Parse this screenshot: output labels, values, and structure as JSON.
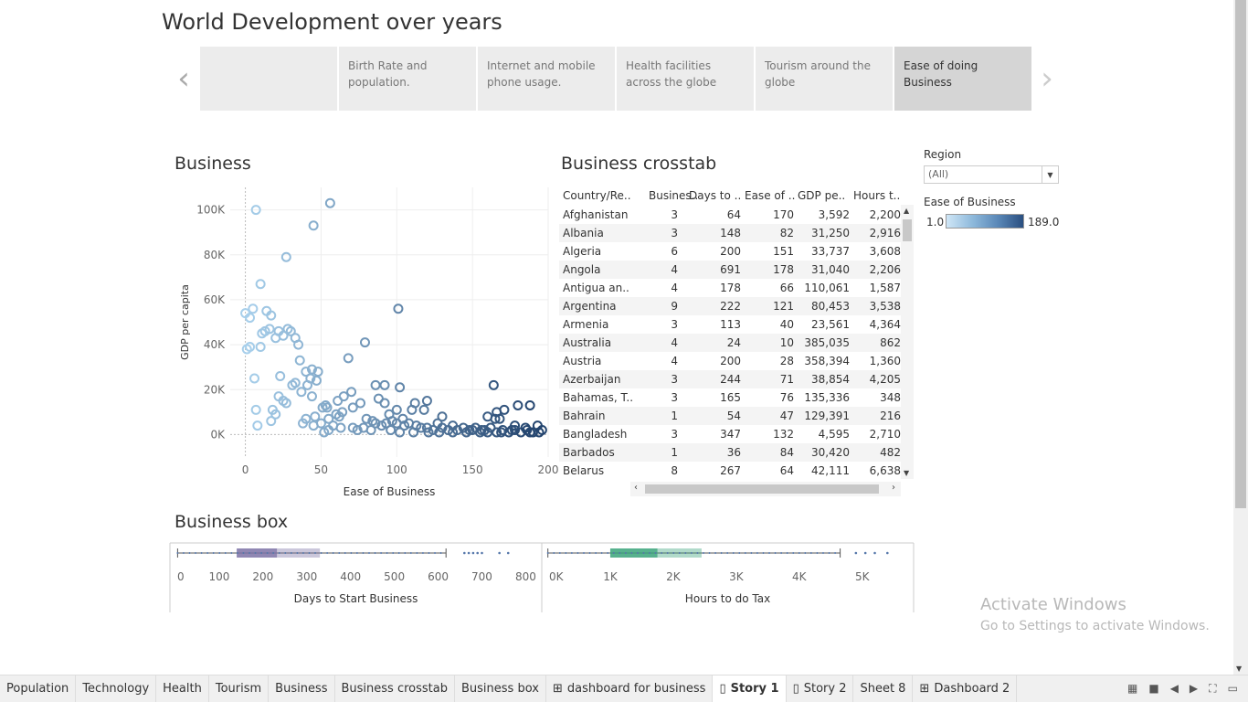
{
  "story": {
    "title": "World Development over years",
    "points": [
      {
        "label": ""
      },
      {
        "label": "Birth Rate and population."
      },
      {
        "label": "Internet and mobile phone usage."
      },
      {
        "label": "Health facilities across the globe"
      },
      {
        "label": "Tourism around the globe"
      },
      {
        "label": "Ease of doing Business"
      }
    ],
    "active_point": 5,
    "prev_arrow": "‹",
    "next_arrow": "›"
  },
  "scatter": {
    "title": "Business",
    "chart_data": {
      "type": "scatter",
      "xlabel": "Ease of Business",
      "ylabel": "GDP per capita",
      "xlim": [
        -10,
        200
      ],
      "ylim": [
        -10000,
        110000
      ],
      "x_ticks": [
        "0",
        "50",
        "100",
        "150",
        "200"
      ],
      "y_ticks": [
        "0K",
        "20K",
        "40K",
        "60K",
        "80K",
        "100K"
      ],
      "color_scale": [
        "#a8d0ec",
        "#24456f"
      ],
      "points": [
        [
          7,
          100000
        ],
        [
          56,
          103000
        ],
        [
          45,
          93000
        ],
        [
          27,
          79000
        ],
        [
          10,
          67000
        ],
        [
          101,
          56000
        ],
        [
          5,
          56000
        ],
        [
          0,
          54000
        ],
        [
          14,
          55000
        ],
        [
          17,
          53000
        ],
        [
          3,
          52000
        ],
        [
          13,
          46000
        ],
        [
          16,
          47000
        ],
        [
          22,
          46000
        ],
        [
          28,
          47000
        ],
        [
          30,
          46000
        ],
        [
          25,
          44000
        ],
        [
          33,
          43000
        ],
        [
          20,
          43000
        ],
        [
          11,
          45000
        ],
        [
          35,
          40000
        ],
        [
          79,
          41000
        ],
        [
          3,
          39000
        ],
        [
          1,
          38000
        ],
        [
          10,
          39000
        ],
        [
          68,
          34000
        ],
        [
          36,
          33000
        ],
        [
          44,
          29000
        ],
        [
          40,
          28000
        ],
        [
          48,
          28000
        ],
        [
          6,
          25000
        ],
        [
          23,
          26000
        ],
        [
          43,
          25000
        ],
        [
          47,
          24000
        ],
        [
          33,
          23000
        ],
        [
          31,
          22000
        ],
        [
          41,
          22000
        ],
        [
          86,
          22000
        ],
        [
          92,
          22000
        ],
        [
          102,
          21000
        ],
        [
          164,
          22000
        ],
        [
          37,
          19000
        ],
        [
          22,
          17000
        ],
        [
          44,
          17000
        ],
        [
          65,
          17000
        ],
        [
          70,
          19000
        ],
        [
          61,
          15000
        ],
        [
          76,
          14000
        ],
        [
          88,
          16000
        ],
        [
          92,
          14000
        ],
        [
          25,
          15000
        ],
        [
          27,
          14000
        ],
        [
          112,
          14000
        ],
        [
          120,
          15000
        ],
        [
          53,
          13000
        ],
        [
          54,
          12000
        ],
        [
          51,
          12000
        ],
        [
          71,
          12000
        ],
        [
          100,
          11000
        ],
        [
          110,
          11000
        ],
        [
          118,
          11000
        ],
        [
          166,
          10000
        ],
        [
          171,
          11000
        ],
        [
          180,
          13000
        ],
        [
          188,
          13000
        ],
        [
          7,
          11000
        ],
        [
          18,
          11000
        ],
        [
          20,
          9000
        ],
        [
          60,
          9000
        ],
        [
          64,
          10000
        ],
        [
          95,
          9000
        ],
        [
          130,
          8000
        ],
        [
          160,
          8000
        ],
        [
          165,
          7000
        ],
        [
          168,
          7000
        ],
        [
          17,
          6000
        ],
        [
          40,
          7000
        ],
        [
          46,
          8000
        ],
        [
          55,
          7000
        ],
        [
          62,
          8000
        ],
        [
          80,
          7000
        ],
        [
          104,
          7000
        ],
        [
          45,
          4000
        ],
        [
          50,
          5000
        ],
        [
          38,
          5000
        ],
        [
          8,
          4000
        ],
        [
          55,
          2000
        ],
        [
          58,
          4000
        ],
        [
          63,
          3000
        ],
        [
          71,
          3000
        ],
        [
          74,
          2000
        ],
        [
          84,
          6000
        ],
        [
          86,
          5000
        ],
        [
          90,
          4000
        ],
        [
          93,
          5000
        ],
        [
          97,
          6000
        ],
        [
          100,
          5000
        ],
        [
          105,
          4000
        ],
        [
          108,
          5000
        ],
        [
          113,
          4000
        ],
        [
          116,
          3000
        ],
        [
          120,
          3000
        ],
        [
          124,
          2000
        ],
        [
          127,
          5000
        ],
        [
          130,
          3000
        ],
        [
          134,
          2000
        ],
        [
          137,
          4000
        ],
        [
          140,
          2000
        ],
        [
          144,
          3000
        ],
        [
          148,
          2000
        ],
        [
          152,
          3000
        ],
        [
          155,
          1000
        ],
        [
          158,
          2000
        ],
        [
          162,
          3000
        ],
        [
          166,
          1000
        ],
        [
          170,
          2000
        ],
        [
          174,
          1000
        ],
        [
          178,
          2000
        ],
        [
          182,
          1000
        ],
        [
          186,
          2000
        ],
        [
          190,
          1000
        ],
        [
          194,
          1000
        ],
        [
          196,
          2000
        ],
        [
          185,
          3000
        ],
        [
          178,
          4000
        ],
        [
          52,
          1000
        ],
        [
          83,
          2000
        ],
        [
          78,
          3000
        ],
        [
          96,
          2000
        ],
        [
          102,
          1000
        ],
        [
          111,
          1000
        ],
        [
          121,
          1000
        ],
        [
          128,
          1000
        ],
        [
          137,
          1000
        ],
        [
          146,
          1000
        ],
        [
          150,
          2000
        ],
        [
          156,
          2000
        ],
        [
          160,
          1000
        ],
        [
          169,
          1000
        ],
        [
          176,
          2000
        ],
        [
          188,
          1000
        ],
        [
          193,
          4000
        ]
      ]
    }
  },
  "crosstab": {
    "title": "Business crosstab",
    "headers": [
      "Country/Re..",
      "Busines..",
      "Days to ..",
      "Ease of ..",
      "GDP pe..",
      "Hours t.."
    ],
    "rows": [
      [
        "Afghanistan",
        "3",
        "64",
        "170",
        "3,592",
        "2,200"
      ],
      [
        "Albania",
        "3",
        "148",
        "82",
        "31,250",
        "2,916"
      ],
      [
        "Algeria",
        "6",
        "200",
        "151",
        "33,737",
        "3,608"
      ],
      [
        "Angola",
        "4",
        "691",
        "178",
        "31,040",
        "2,206"
      ],
      [
        "Antigua an..",
        "4",
        "178",
        "66",
        "110,061",
        "1,587"
      ],
      [
        "Argentina",
        "9",
        "222",
        "121",
        "80,453",
        "3,538"
      ],
      [
        "Armenia",
        "3",
        "113",
        "40",
        "23,561",
        "4,364"
      ],
      [
        "Australia",
        "4",
        "24",
        "10",
        "385,035",
        "862"
      ],
      [
        "Austria",
        "4",
        "200",
        "28",
        "358,394",
        "1,360"
      ],
      [
        "Azerbaijan",
        "3",
        "244",
        "71",
        "38,854",
        "4,205"
      ],
      [
        "Bahamas, T..",
        "3",
        "165",
        "76",
        "135,336",
        "348"
      ],
      [
        "Bahrain",
        "1",
        "54",
        "47",
        "129,391",
        "216"
      ],
      [
        "Bangladesh",
        "3",
        "347",
        "132",
        "4,595",
        "2,710"
      ],
      [
        "Barbados",
        "1",
        "36",
        "84",
        "30,420",
        "482"
      ],
      [
        "Belarus",
        "8",
        "267",
        "64",
        "42,111",
        "6,638"
      ]
    ]
  },
  "filters": {
    "region_label": "Region",
    "region_value": "(All)",
    "legend_label": "Ease of Business",
    "legend_min": "1.0",
    "legend_max": "189.0"
  },
  "boxplot": {
    "title": "Business box",
    "chart_data": [
      {
        "type": "box",
        "xlabel": "Days to Start Business",
        "x_ticks": [
          "0",
          "100",
          "200",
          "300",
          "400",
          "500",
          "600",
          "700",
          "800"
        ],
        "xlim": [
          0,
          820
        ],
        "whisker_low": 5,
        "q1": 140,
        "median": 232,
        "q3": 330,
        "whisker_high": 618,
        "outliers": [
          660,
          670,
          680,
          690,
          700,
          740,
          760
        ],
        "color": "#7c72a6"
      },
      {
        "type": "box",
        "xlabel": "Hours to do Tax",
        "x_ticks": [
          "0K",
          "1K",
          "2K",
          "3K",
          "4K",
          "5K"
        ],
        "xlim": [
          0,
          5700
        ],
        "whisker_low": 10,
        "q1": 1000,
        "median": 1750,
        "q3": 2450,
        "whisker_high": 4650,
        "outliers": [
          4900,
          5050,
          5200,
          5400
        ],
        "color": "#3aa37a"
      }
    ]
  },
  "tabs": [
    {
      "label": "Population",
      "icon": ""
    },
    {
      "label": "Technology",
      "icon": ""
    },
    {
      "label": "Health",
      "icon": ""
    },
    {
      "label": "Tourism",
      "icon": ""
    },
    {
      "label": "Business",
      "icon": ""
    },
    {
      "label": "Business crosstab",
      "icon": ""
    },
    {
      "label": "Business box",
      "icon": ""
    },
    {
      "label": "dashboard for business",
      "icon": "⊞"
    },
    {
      "label": "Story 1",
      "icon": "▯"
    },
    {
      "label": "Story 2",
      "icon": "▯"
    },
    {
      "label": "Sheet 8",
      "icon": ""
    },
    {
      "label": "Dashboard 2",
      "icon": "⊞"
    }
  ],
  "active_tab": 8,
  "watermark": {
    "line1": "Activate Windows",
    "line2": "Go to Settings to activate Windows."
  }
}
